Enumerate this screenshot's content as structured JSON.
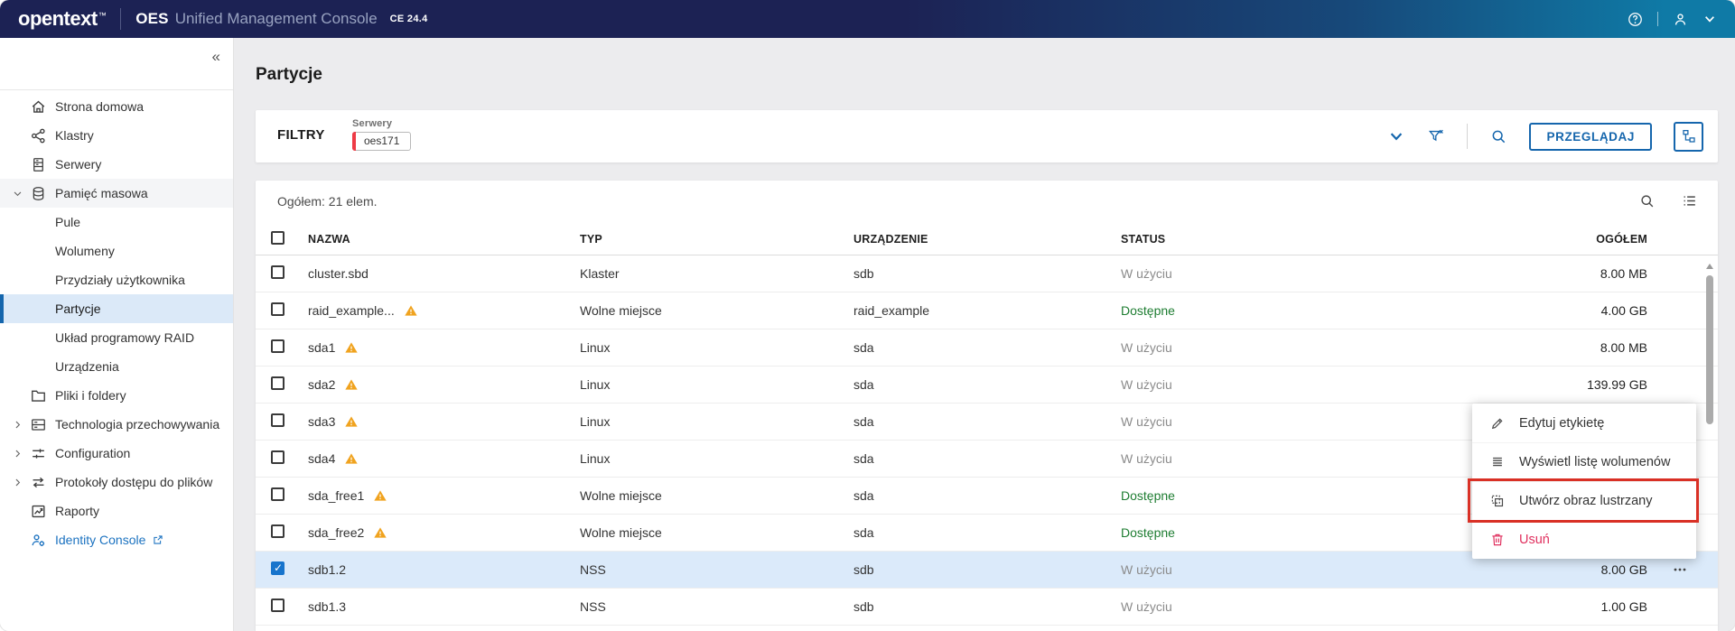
{
  "header": {
    "logo": "opentext",
    "logo_tm": "™",
    "product": "OES",
    "product_suffix": "Unified Management Console",
    "version": "CE 24.4",
    "icons": [
      "help-icon",
      "user-icon",
      "caret-down-icon"
    ]
  },
  "sidebar": {
    "collapse_glyph": "«",
    "items": [
      {
        "label": "Strona domowa",
        "icon": "home"
      },
      {
        "label": "Klastry",
        "icon": "cluster"
      },
      {
        "label": "Serwery",
        "icon": "server"
      },
      {
        "label": "Pamięć masowa",
        "icon": "database",
        "chevron": "chevron-down",
        "shaded": true,
        "expanded": true
      },
      {
        "label": "Pule",
        "child": true
      },
      {
        "label": "Wolumeny",
        "child": true
      },
      {
        "label": "Przydziały użytkownika",
        "child": true
      },
      {
        "label": "Partycje",
        "child": true,
        "active": true
      },
      {
        "label": "Układ programowy RAID",
        "child": true
      },
      {
        "label": "Urządzenia",
        "child": true
      },
      {
        "label": "Pliki i foldery",
        "icon": "folder"
      },
      {
        "label": "Technologia przechowywania",
        "icon": "tech",
        "chevron": "chevron-right"
      },
      {
        "label": "Configuration",
        "icon": "config",
        "chevron": "chevron-right"
      },
      {
        "label": "Protokoły dostępu do plików",
        "icon": "protocols",
        "chevron": "chevron-right"
      },
      {
        "label": "Raporty",
        "icon": "reports"
      },
      {
        "label": "Identity Console",
        "icon": "identity",
        "link": true,
        "external_icon": "external"
      }
    ]
  },
  "page": {
    "title": "Partycje"
  },
  "filters": {
    "label": "FILTRY",
    "group_label": "Serwery",
    "chip": "oes171",
    "browse_button": "PRZEGLĄDAJ",
    "icons": [
      "collapse-filters-icon",
      "clear-filter-icon",
      "search-icon",
      "tree-view-icon"
    ]
  },
  "table": {
    "summary": "Ogółem: 21 elem.",
    "toolbar_icons": [
      "search-icon",
      "list-view-icon"
    ],
    "columns": [
      {
        "label": "NAZWA"
      },
      {
        "label": "TYP"
      },
      {
        "label": "URZĄDZENIE"
      },
      {
        "label": "STATUS"
      },
      {
        "label": "OGÓŁEM"
      }
    ],
    "rows": [
      {
        "name": "cluster.sbd",
        "type": "Klaster",
        "device": "sdb",
        "status": "W użyciu",
        "total": "8.00 MB"
      },
      {
        "name": "raid_example...",
        "warn": "warning",
        "type": "Wolne miejsce",
        "device": "raid_example",
        "status": "Dostępne",
        "ok": true,
        "total": "4.00 GB"
      },
      {
        "name": "sda1",
        "warn": "warning",
        "type": "Linux",
        "device": "sda",
        "status": "W użyciu",
        "total": "8.00 MB"
      },
      {
        "name": "sda2",
        "warn": "warning",
        "type": "Linux",
        "device": "sda",
        "status": "W użyciu",
        "total": "139.99 GB"
      },
      {
        "name": "sda3",
        "warn": "warning",
        "type": "Linux",
        "device": "sda",
        "status": "W użyciu",
        "total": ""
      },
      {
        "name": "sda4",
        "warn": "warning",
        "type": "Linux",
        "device": "sda",
        "status": "W użyciu",
        "total": ""
      },
      {
        "name": "sda_free1",
        "warn": "warning",
        "type": "Wolne miejsce",
        "device": "sda",
        "status": "Dostępne",
        "ok": true,
        "total": ""
      },
      {
        "name": "sda_free2",
        "warn": "warning",
        "type": "Wolne miejsce",
        "device": "sda",
        "status": "Dostępne",
        "ok": true,
        "total": ""
      },
      {
        "name": "sdb1.2",
        "type": "NSS",
        "device": "sdb",
        "status": "W użyciu",
        "total": "8.00 GB",
        "checked": true,
        "sel": true,
        "dots": "dots"
      },
      {
        "name": "sdb1.3",
        "type": "NSS",
        "device": "sdb",
        "status": "W użyciu",
        "total": "1.00 GB"
      }
    ]
  },
  "context_menu": {
    "items": [
      {
        "icon": "pencil",
        "label": "Edytuj etykietę"
      },
      {
        "icon": "vollist",
        "label": "Wyświetl listę wolumenów"
      },
      {
        "icon": "mirror",
        "label": "Utwórz obraz lustrzany",
        "highlighted": true
      },
      {
        "icon": "trash",
        "label": "Usuń",
        "danger": true
      }
    ]
  },
  "colors": {
    "accent": "#1566ad",
    "link": "#1b72c0",
    "warning": "#f0a31f",
    "danger": "#e0315f",
    "ok": "#1e7d32",
    "highlight": "#d93025",
    "chipbar": "#ee3b46"
  }
}
